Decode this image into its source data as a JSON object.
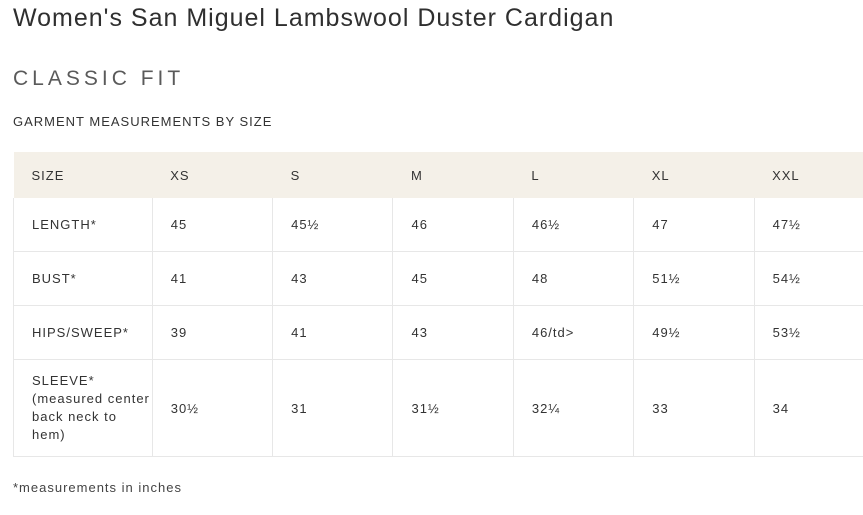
{
  "product": {
    "title": "Women's San Miguel Lambswool Duster Cardigan",
    "fit": "CLASSIC FIT"
  },
  "size_chart": {
    "heading": "GARMENT MEASUREMENTS BY SIZE",
    "columns": [
      "SIZE",
      "XS",
      "S",
      "M",
      "L",
      "XL",
      "XXL"
    ],
    "rows": [
      {
        "label": "LENGTH*",
        "values": [
          "45",
          "45½",
          "46",
          "46½",
          "47",
          "47½"
        ]
      },
      {
        "label": "BUST*",
        "values": [
          "41",
          "43",
          "45",
          "48",
          "51½",
          "54½"
        ]
      },
      {
        "label": "HIPS/SWEEP*",
        "values": [
          "39",
          "41",
          "43",
          "46/td>",
          "49½",
          "53½"
        ]
      },
      {
        "label": "SLEEVE* (measured center back neck to hem)",
        "values": [
          "30½",
          "31",
          "31½",
          "32¼",
          "33",
          "34"
        ]
      }
    ],
    "footnote": "*measurements in inches"
  }
}
